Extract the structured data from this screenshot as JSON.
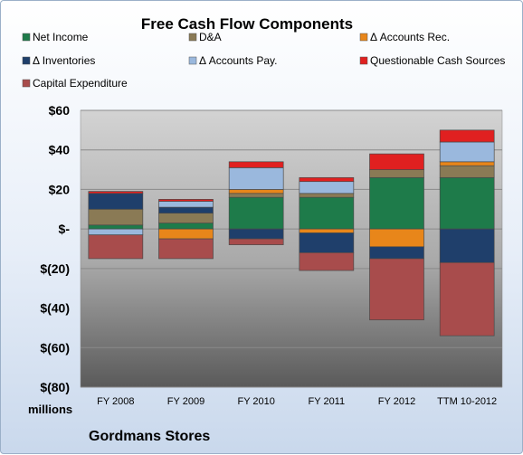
{
  "chart_data": {
    "type": "bar",
    "stacked": true,
    "title": "Free Cash Flow Components",
    "unit_label": "millions",
    "company": "Gordmans Stores",
    "categories": [
      "FY 2008",
      "FY 2009",
      "FY 2010",
      "FY 2011",
      "FY 2012",
      "TTM 10-2012"
    ],
    "ylim": [
      -80,
      60
    ],
    "yticks": [
      60,
      40,
      20,
      0,
      -20,
      -40,
      -60,
      -80
    ],
    "ytick_labels": [
      "$60",
      "$40",
      "$20",
      "$-",
      "$(20)",
      "$(40)",
      "$(60)",
      "$(80)"
    ],
    "legend_position": "top",
    "grid": true,
    "series": [
      {
        "name": "Net Income",
        "color": "#1e7b4a",
        "values": [
          2,
          3,
          16,
          16,
          26,
          26
        ]
      },
      {
        "name": "D&A",
        "color": "#8a7a55",
        "values": [
          8,
          5,
          2,
          2,
          4,
          6
        ]
      },
      {
        "name": "Δ Accounts Rec.",
        "color": "#e8861a",
        "values": [
          0,
          -5,
          2,
          -2,
          -9,
          2
        ]
      },
      {
        "name": "Δ Inventories",
        "color": "#1f3f6b",
        "values": [
          8,
          3,
          -5,
          -10,
          -6,
          -17
        ]
      },
      {
        "name": "Δ Accounts Pay.",
        "color": "#9ab8dd",
        "values": [
          -3,
          3,
          11,
          6,
          0,
          10
        ]
      },
      {
        "name": "Questionable Cash Sources",
        "color": "#e02020",
        "values": [
          1,
          1,
          3,
          2,
          8,
          6
        ]
      },
      {
        "name": "Capital Expenditure",
        "color": "#a84c4c",
        "values": [
          -12,
          -10,
          -3,
          -9,
          -31,
          -37
        ]
      }
    ]
  }
}
